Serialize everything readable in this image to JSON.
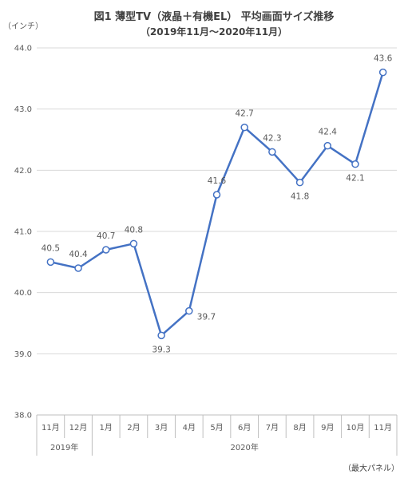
{
  "chart_data": {
    "type": "line",
    "title": "図1 薄型TV（液晶＋有機EL） 平均画面サイズ推移",
    "subtitle": "（2019年11月〜2020年11月）",
    "y_unit": "（インチ）",
    "note": "（最大パネル）",
    "categories": [
      "11月",
      "12月",
      "1月",
      "2月",
      "3月",
      "4月",
      "5月",
      "6月",
      "7月",
      "8月",
      "9月",
      "10月",
      "11月"
    ],
    "groups": [
      {
        "label": "2019年",
        "span": 2
      },
      {
        "label": "2020年",
        "span": 11
      }
    ],
    "values": [
      40.5,
      40.4,
      40.7,
      40.8,
      39.3,
      39.7,
      41.6,
      42.7,
      42.3,
      41.8,
      42.4,
      42.1,
      43.6
    ],
    "value_labels": [
      "40.5",
      "40.4",
      "40.7",
      "40.8",
      "39.3",
      "39.7",
      "41.6",
      "42.7",
      "42.3",
      "41.8",
      "42.4",
      "42.1",
      "43.6"
    ],
    "label_position": [
      "above",
      "above",
      "above",
      "above",
      "below",
      "right",
      "above",
      "above",
      "above",
      "below",
      "above",
      "below",
      "above"
    ],
    "ylim": [
      38.0,
      44.0
    ],
    "yticks": [
      "38.0",
      "39.0",
      "40.0",
      "41.0",
      "42.0",
      "43.0",
      "44.0"
    ],
    "grid": true,
    "colors": {
      "line": "#4472C4",
      "grid": "#d9d9d9",
      "axis": "#bfbfbf"
    }
  }
}
